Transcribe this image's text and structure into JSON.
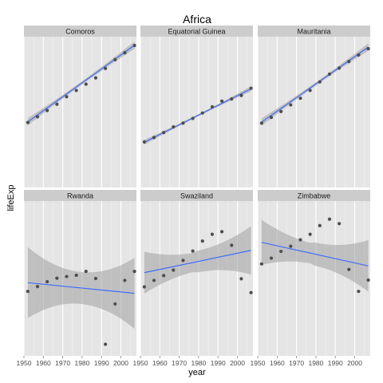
{
  "chart_data": {
    "type": "scatter",
    "title": "Africa",
    "xlabel": "year",
    "ylabel": "lifeExp",
    "xlim": [
      1950,
      2008
    ],
    "x_ticks": [
      1950,
      1960,
      1970,
      1980,
      1990,
      2000
    ],
    "y_ticks_shown": false,
    "grid": true,
    "overlay": "linear fit with confidence band",
    "layout": "facet grid, 2 rows x 3 columns, shared axes",
    "colors": {
      "panel_background": "#e5e5e5",
      "grid": "#ffffff",
      "strip_background": "#cccccc",
      "points": "#4d4d4d",
      "fit_line": "#3366ff",
      "confidence_band": "#999999"
    },
    "panels": [
      {
        "name": "Comoros",
        "x": [
          1952,
          1957,
          1962,
          1967,
          1972,
          1977,
          1982,
          1987,
          1992,
          1997,
          2002,
          2007
        ],
        "y": [
          40.7,
          42.5,
          44.5,
          46.5,
          48.9,
          50.9,
          52.9,
          54.9,
          57.9,
          60.7,
          62.9,
          65.2
        ],
        "fit": {
          "start": 40.9,
          "end": 65.3,
          "band_start": 1.2,
          "band_end": 1.2
        }
      },
      {
        "name": "Equatorial Guinea",
        "x": [
          1952,
          1957,
          1962,
          1967,
          1972,
          1977,
          1982,
          1987,
          1992,
          1997,
          2002,
          2007
        ],
        "y": [
          34.5,
          35.9,
          37.5,
          39.3,
          40.5,
          42.0,
          43.7,
          45.7,
          47.5,
          48.2,
          49.3,
          51.6
        ],
        "fit": {
          "start": 34.4,
          "end": 51.4,
          "band_start": 0.8,
          "band_end": 0.8
        }
      },
      {
        "name": "Mauritania",
        "x": [
          1952,
          1957,
          1962,
          1967,
          1972,
          1977,
          1982,
          1987,
          1992,
          1997,
          2002,
          2007
        ],
        "y": [
          40.5,
          42.3,
          44.2,
          46.3,
          48.4,
          50.9,
          53.6,
          56.1,
          58.0,
          60.1,
          62.2,
          64.2
        ],
        "fit": {
          "start": 40.8,
          "end": 64.7,
          "band_start": 1.2,
          "band_end": 1.2
        }
      },
      {
        "name": "Rwanda",
        "x": [
          1952,
          1957,
          1962,
          1967,
          1972,
          1977,
          1982,
          1987,
          1992,
          1997,
          2002,
          2007
        ],
        "y": [
          40.0,
          41.5,
          43.0,
          44.1,
          44.6,
          45.0,
          46.2,
          44.0,
          23.6,
          36.1,
          43.4,
          46.2
        ],
        "fit": {
          "start": 42.7,
          "end": 39.4,
          "band_start": 11.0,
          "band_end": 11.0
        }
      },
      {
        "name": "Swaziland",
        "x": [
          1952,
          1957,
          1962,
          1967,
          1972,
          1977,
          1982,
          1987,
          1992,
          1997,
          2002,
          2007
        ],
        "y": [
          41.4,
          43.4,
          44.9,
          46.6,
          49.6,
          52.5,
          55.6,
          57.7,
          58.5,
          54.3,
          43.9,
          39.6
        ],
        "fit": {
          "start": 45.8,
          "end": 52.7,
          "band_start": 6.5,
          "band_end": 7.5
        }
      },
      {
        "name": "Zimbabwe",
        "x": [
          1952,
          1957,
          1962,
          1967,
          1972,
          1977,
          1982,
          1987,
          1992,
          1997,
          2002,
          2007
        ],
        "y": [
          48.5,
          50.3,
          52.4,
          54.0,
          56.0,
          57.7,
          60.4,
          62.4,
          61.0,
          46.8,
          40.0,
          43.5
        ],
        "fit": {
          "start": 55.2,
          "end": 47.9,
          "band_start": 7.0,
          "band_end": 8.0
        }
      }
    ]
  }
}
